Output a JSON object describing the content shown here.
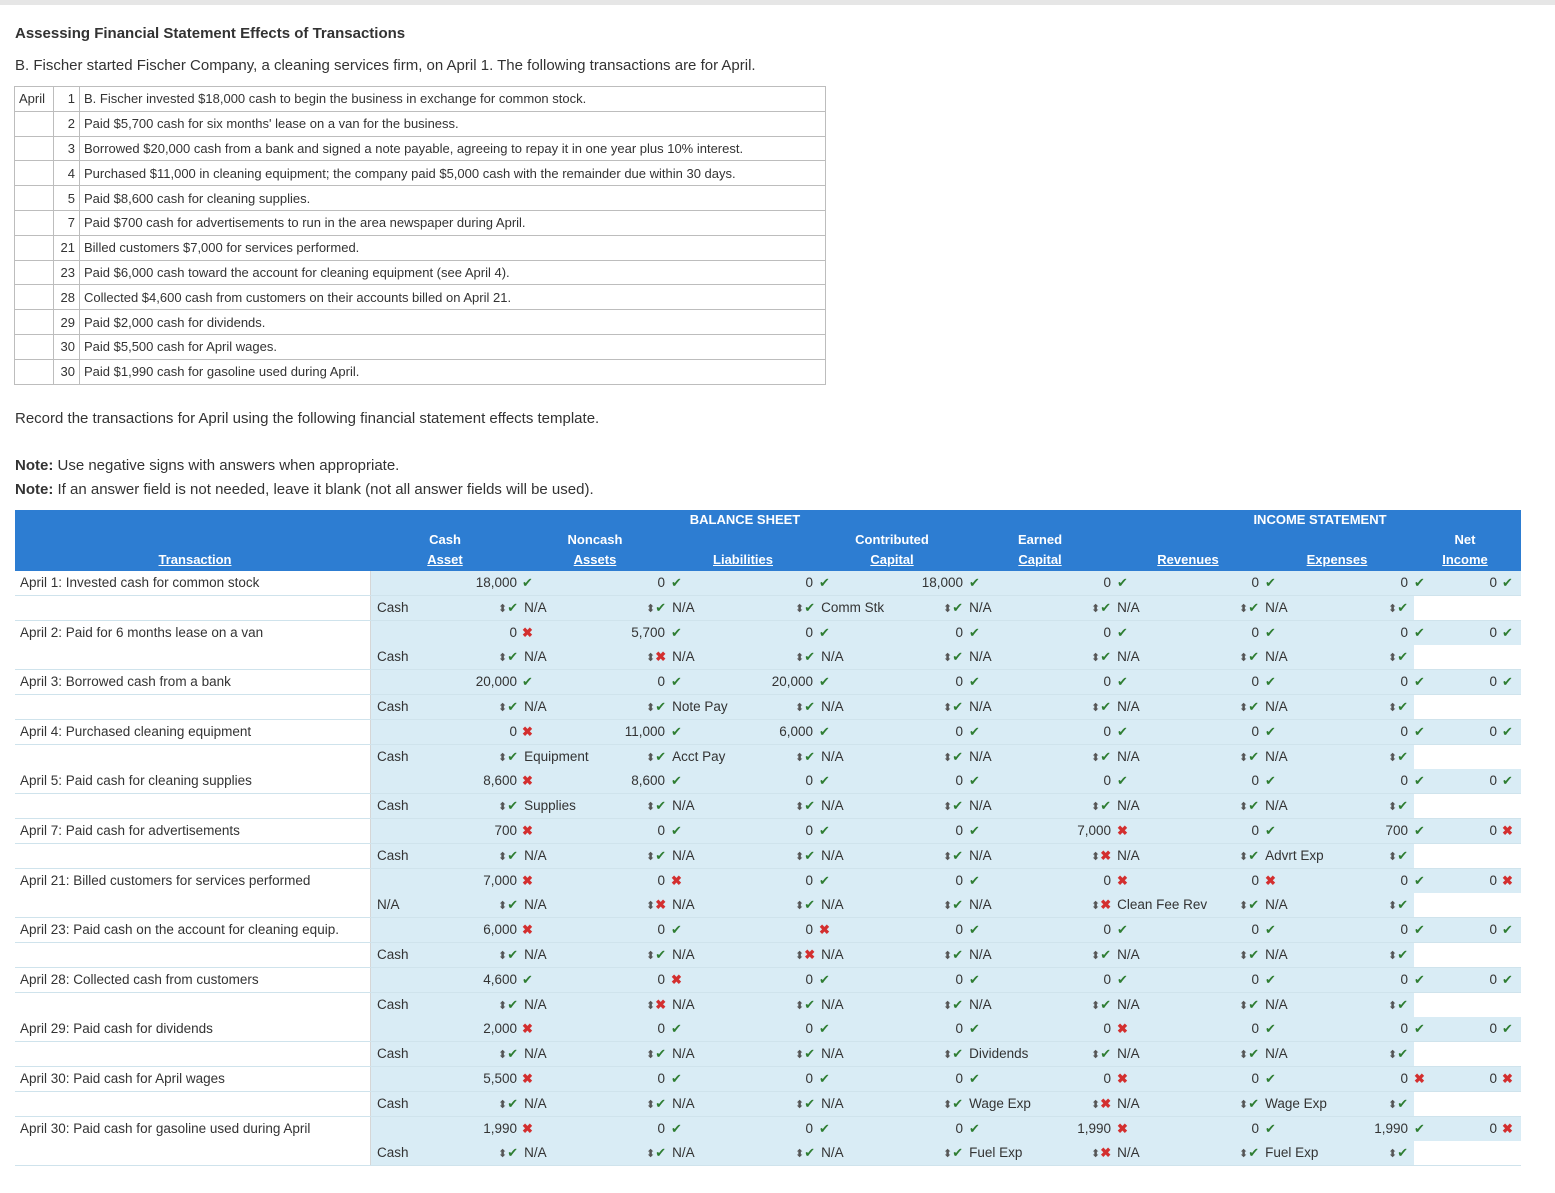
{
  "title": "Assessing Financial Statement Effects of Transactions",
  "intro": "B. Fischer started Fischer Company, a cleaning services firm, on April 1. The following transactions are for April.",
  "transactions": [
    {
      "month": "April",
      "day": "1",
      "desc": "B. Fischer invested $18,000 cash to begin the business in exchange for common stock."
    },
    {
      "month": "",
      "day": "2",
      "desc": "Paid $5,700 cash for six months' lease on a van for the business."
    },
    {
      "month": "",
      "day": "3",
      "desc": "Borrowed $20,000 cash from a bank and signed a note payable, agreeing to repay it in one year plus 10% interest."
    },
    {
      "month": "",
      "day": "4",
      "desc": "Purchased $11,000 in cleaning equipment; the company paid $5,000 cash with the remainder due within 30 days."
    },
    {
      "month": "",
      "day": "5",
      "desc": "Paid $8,600 cash for cleaning supplies."
    },
    {
      "month": "",
      "day": "7",
      "desc": "Paid $700 cash for advertisements to run in the area newspaper during April."
    },
    {
      "month": "",
      "day": "21",
      "desc": "Billed customers $7,000 for services performed."
    },
    {
      "month": "",
      "day": "23",
      "desc": "Paid $6,000 cash toward the account for cleaning equipment (see April 4)."
    },
    {
      "month": "",
      "day": "28",
      "desc": "Collected $4,600 cash from customers on their accounts billed on April 21."
    },
    {
      "month": "",
      "day": "29",
      "desc": "Paid $2,000 cash for dividends."
    },
    {
      "month": "",
      "day": "30",
      "desc": "Paid $5,500 cash for April wages."
    },
    {
      "month": "",
      "day": "30",
      "desc": "Paid $1,990 cash for gasoline used during April."
    }
  ],
  "record_text": "Record the transactions for April using the following financial statement effects template.",
  "notes": [
    {
      "label": "Note:",
      "text": " Use negative signs with answers when appropriate."
    },
    {
      "label": "Note:",
      "text": " If an answer field is not needed, leave it blank (not all answer fields will be used)."
    }
  ],
  "headers": {
    "balance_sheet": "BALANCE SHEET",
    "income_statement": "INCOME STATEMENT",
    "transaction": "Transaction",
    "cash_1": "Cash",
    "cash_2": "Asset",
    "noncash_1": "Noncash",
    "noncash_2": "Assets",
    "liabilities": "Liabilities",
    "contrib_1": "Contributed",
    "contrib_2": "Capital",
    "earned_1": "Earned",
    "earned_2": "Capital",
    "revenues": "Revenues",
    "expenses": "Expenses",
    "net_1": "Net",
    "net_2": "Income"
  },
  "entries": [
    {
      "label": "April 1: Invested cash for common stock",
      "vals": [
        [
          "18,000",
          "ok"
        ],
        [
          "0",
          "ok"
        ],
        [
          "0",
          "ok"
        ],
        [
          "18,000",
          "ok"
        ],
        [
          "0",
          "ok"
        ],
        [
          "0",
          "ok"
        ],
        [
          "0",
          "ok"
        ]
      ],
      "net": [
        "0",
        "ok"
      ],
      "accts": [
        [
          "Cash",
          ""
        ],
        [
          "N/A",
          "ok"
        ],
        [
          "N/A",
          "ok"
        ],
        [
          "Comm Stk",
          "ok"
        ],
        [
          "N/A",
          "ok"
        ],
        [
          "N/A",
          "ok"
        ],
        [
          "N/A",
          "ok"
        ],
        [
          "",
          "ok"
        ]
      ]
    },
    {
      "label": "April 2: Paid for 6 months lease on a van",
      "vals": [
        [
          "0",
          "bad"
        ],
        [
          "5,700",
          "ok"
        ],
        [
          "0",
          "ok"
        ],
        [
          "0",
          "ok"
        ],
        [
          "0",
          "ok"
        ],
        [
          "0",
          "ok"
        ],
        [
          "0",
          "ok"
        ]
      ],
      "net": [
        "0",
        "ok"
      ],
      "accts": [
        [
          "Cash",
          ""
        ],
        [
          "N/A",
          "ok"
        ],
        [
          "N/A",
          "bad"
        ],
        [
          "N/A",
          "ok"
        ],
        [
          "N/A",
          "ok"
        ],
        [
          "N/A",
          "ok"
        ],
        [
          "N/A",
          "ok"
        ],
        [
          "",
          "ok"
        ]
      ]
    },
    {
      "label": "April 3: Borrowed cash from a bank",
      "vals": [
        [
          "20,000",
          "ok"
        ],
        [
          "0",
          "ok"
        ],
        [
          "20,000",
          "ok"
        ],
        [
          "0",
          "ok"
        ],
        [
          "0",
          "ok"
        ],
        [
          "0",
          "ok"
        ],
        [
          "0",
          "ok"
        ]
      ],
      "net": [
        "0",
        "ok"
      ],
      "accts": [
        [
          "Cash",
          ""
        ],
        [
          "N/A",
          "ok"
        ],
        [
          "Note Pay",
          "ok"
        ],
        [
          "N/A",
          "ok"
        ],
        [
          "N/A",
          "ok"
        ],
        [
          "N/A",
          "ok"
        ],
        [
          "N/A",
          "ok"
        ],
        [
          "",
          "ok"
        ]
      ]
    },
    {
      "label": "April 4: Purchased cleaning equipment",
      "vals": [
        [
          "0",
          "bad"
        ],
        [
          "11,000",
          "ok"
        ],
        [
          "6,000",
          "ok"
        ],
        [
          "0",
          "ok"
        ],
        [
          "0",
          "ok"
        ],
        [
          "0",
          "ok"
        ],
        [
          "0",
          "ok"
        ]
      ],
      "net": [
        "0",
        "ok"
      ],
      "accts": [
        [
          "Cash",
          ""
        ],
        [
          "Equipment",
          "ok"
        ],
        [
          "Acct Pay",
          "ok"
        ],
        [
          "N/A",
          "ok"
        ],
        [
          "N/A",
          "ok"
        ],
        [
          "N/A",
          "ok"
        ],
        [
          "N/A",
          "ok"
        ],
        [
          "",
          "ok"
        ]
      ]
    },
    {
      "label": "April 5: Paid cash for cleaning supplies",
      "vals": [
        [
          "8,600",
          "bad"
        ],
        [
          "8,600",
          "ok"
        ],
        [
          "0",
          "ok"
        ],
        [
          "0",
          "ok"
        ],
        [
          "0",
          "ok"
        ],
        [
          "0",
          "ok"
        ],
        [
          "0",
          "ok"
        ]
      ],
      "net": [
        "0",
        "ok"
      ],
      "accts": [
        [
          "Cash",
          ""
        ],
        [
          "Supplies",
          "ok"
        ],
        [
          "N/A",
          "ok"
        ],
        [
          "N/A",
          "ok"
        ],
        [
          "N/A",
          "ok"
        ],
        [
          "N/A",
          "ok"
        ],
        [
          "N/A",
          "ok"
        ],
        [
          "",
          "ok"
        ]
      ]
    },
    {
      "label": "April 7: Paid cash for advertisements",
      "vals": [
        [
          "700",
          "bad"
        ],
        [
          "0",
          "ok"
        ],
        [
          "0",
          "ok"
        ],
        [
          "0",
          "ok"
        ],
        [
          "7,000",
          "bad"
        ],
        [
          "0",
          "ok"
        ],
        [
          "700",
          "ok"
        ]
      ],
      "net": [
        "0",
        "bad"
      ],
      "accts": [
        [
          "Cash",
          ""
        ],
        [
          "N/A",
          "ok"
        ],
        [
          "N/A",
          "ok"
        ],
        [
          "N/A",
          "ok"
        ],
        [
          "N/A",
          "ok"
        ],
        [
          "N/A",
          "bad"
        ],
        [
          "Advrt Exp",
          "ok"
        ],
        [
          "",
          "ok"
        ]
      ]
    },
    {
      "label": "April 21: Billed customers for services performed",
      "vals": [
        [
          "7,000",
          "bad"
        ],
        [
          "0",
          "bad"
        ],
        [
          "0",
          "ok"
        ],
        [
          "0",
          "ok"
        ],
        [
          "0",
          "bad"
        ],
        [
          "0",
          "bad"
        ],
        [
          "0",
          "ok"
        ]
      ],
      "net": [
        "0",
        "bad"
      ],
      "accts": [
        [
          "N/A",
          ""
        ],
        [
          "N/A",
          "ok"
        ],
        [
          "N/A",
          "bad"
        ],
        [
          "N/A",
          "ok"
        ],
        [
          "N/A",
          "ok"
        ],
        [
          "Clean Fee Rev",
          "bad"
        ],
        [
          "N/A",
          "ok"
        ],
        [
          "",
          "ok"
        ]
      ]
    },
    {
      "label": "April 23: Paid cash on the account for cleaning equip.",
      "vals": [
        [
          "6,000",
          "bad"
        ],
        [
          "0",
          "ok"
        ],
        [
          "0",
          "bad"
        ],
        [
          "0",
          "ok"
        ],
        [
          "0",
          "ok"
        ],
        [
          "0",
          "ok"
        ],
        [
          "0",
          "ok"
        ]
      ],
      "net": [
        "0",
        "ok"
      ],
      "accts": [
        [
          "Cash",
          ""
        ],
        [
          "N/A",
          "ok"
        ],
        [
          "N/A",
          "ok"
        ],
        [
          "N/A",
          "bad"
        ],
        [
          "N/A",
          "ok"
        ],
        [
          "N/A",
          "ok"
        ],
        [
          "N/A",
          "ok"
        ],
        [
          "",
          "ok"
        ]
      ]
    },
    {
      "label": "April 28: Collected cash from customers",
      "vals": [
        [
          "4,600",
          "ok"
        ],
        [
          "0",
          "bad"
        ],
        [
          "0",
          "ok"
        ],
        [
          "0",
          "ok"
        ],
        [
          "0",
          "ok"
        ],
        [
          "0",
          "ok"
        ],
        [
          "0",
          "ok"
        ]
      ],
      "net": [
        "0",
        "ok"
      ],
      "accts": [
        [
          "Cash",
          ""
        ],
        [
          "N/A",
          "ok"
        ],
        [
          "N/A",
          "bad"
        ],
        [
          "N/A",
          "ok"
        ],
        [
          "N/A",
          "ok"
        ],
        [
          "N/A",
          "ok"
        ],
        [
          "N/A",
          "ok"
        ],
        [
          "",
          "ok"
        ]
      ]
    },
    {
      "label": "April 29: Paid cash for dividends",
      "vals": [
        [
          "2,000",
          "bad"
        ],
        [
          "0",
          "ok"
        ],
        [
          "0",
          "ok"
        ],
        [
          "0",
          "ok"
        ],
        [
          "0",
          "bad"
        ],
        [
          "0",
          "ok"
        ],
        [
          "0",
          "ok"
        ]
      ],
      "net": [
        "0",
        "ok"
      ],
      "accts": [
        [
          "Cash",
          ""
        ],
        [
          "N/A",
          "ok"
        ],
        [
          "N/A",
          "ok"
        ],
        [
          "N/A",
          "ok"
        ],
        [
          "Dividends",
          "ok"
        ],
        [
          "N/A",
          "ok"
        ],
        [
          "N/A",
          "ok"
        ],
        [
          "",
          "ok"
        ]
      ]
    },
    {
      "label": "April 30: Paid cash for April wages",
      "vals": [
        [
          "5,500",
          "bad"
        ],
        [
          "0",
          "ok"
        ],
        [
          "0",
          "ok"
        ],
        [
          "0",
          "ok"
        ],
        [
          "0",
          "bad"
        ],
        [
          "0",
          "ok"
        ],
        [
          "0",
          "bad"
        ]
      ],
      "net": [
        "0",
        "bad"
      ],
      "accts": [
        [
          "Cash",
          ""
        ],
        [
          "N/A",
          "ok"
        ],
        [
          "N/A",
          "ok"
        ],
        [
          "N/A",
          "ok"
        ],
        [
          "Wage Exp",
          "ok"
        ],
        [
          "N/A",
          "bad"
        ],
        [
          "Wage Exp",
          "ok"
        ],
        [
          "",
          "ok"
        ]
      ]
    },
    {
      "label": "April 30: Paid cash for gasoline used during April",
      "vals": [
        [
          "1,990",
          "bad"
        ],
        [
          "0",
          "ok"
        ],
        [
          "0",
          "ok"
        ],
        [
          "0",
          "ok"
        ],
        [
          "1,990",
          "bad"
        ],
        [
          "0",
          "ok"
        ],
        [
          "1,990",
          "ok"
        ]
      ],
      "net": [
        "0",
        "bad"
      ],
      "accts": [
        [
          "Cash",
          ""
        ],
        [
          "N/A",
          "ok"
        ],
        [
          "N/A",
          "ok"
        ],
        [
          "N/A",
          "ok"
        ],
        [
          "Fuel Exp",
          "ok"
        ],
        [
          "N/A",
          "bad"
        ],
        [
          "Fuel Exp",
          "ok"
        ],
        [
          "",
          "ok"
        ]
      ]
    }
  ],
  "marks": {
    "ok": "✔",
    "bad": "✖",
    "select": "⬍"
  },
  "colors": {
    "header_blue": "#2d7dd2",
    "cell_blue": "#d9ecf5",
    "ok_green": "#2e7d32",
    "bad_red": "#d32f2f"
  }
}
